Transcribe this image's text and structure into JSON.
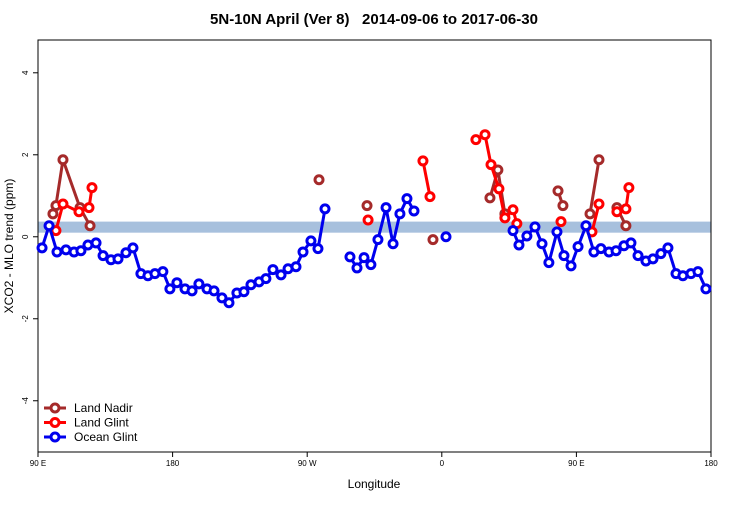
{
  "chart_data": {
    "type": "line",
    "title": "5N-10N April (Ver 8)   2014-09-06 to 2017-06-30",
    "x_label": "Longitude",
    "y_label": "XCO2 - MLO trend (ppm)",
    "xlim": [
      90,
      540
    ],
    "xticks": [
      {
        "value": 90,
        "label": "90 E"
      },
      180,
      {
        "value": 270,
        "label": "90 W"
      },
      {
        "value": 360,
        "label": "0"
      },
      {
        "value": 450,
        "label": "90 E"
      },
      {
        "value": 540,
        "label": "180"
      }
    ],
    "ylim": [
      -5.25,
      4.8
    ],
    "yticks": [
      -4,
      -2,
      0,
      2,
      4
    ],
    "band": {
      "y": [
        0.1,
        0.37
      ],
      "color": "#a7c0dd"
    },
    "legend": "bottom-left",
    "series": [
      {
        "name": "Land Nadir",
        "color": "#a52a2a",
        "x": [
          100.0,
          102.0,
          106.7,
          118.1,
          124.8,
          200,
          277.9,
          330,
          310.0,
          380,
          354.1,
          400,
          392.2,
          397.5,
          402.2,
          430,
          437.7,
          441.0,
          450,
          459.1,
          465.1,
          470,
          477.1,
          483.1
        ],
        "values": [
          0.56,
          0.76,
          1.88,
          0.71,
          0.27,
          null,
          1.39,
          null,
          0.76,
          null,
          -0.07,
          null,
          0.95,
          1.63,
          0.56,
          null,
          1.12,
          0.76,
          null,
          0.56,
          1.88,
          null,
          0.71,
          0.27
        ]
      },
      {
        "name": "Land Glint",
        "color": "#ff0000",
        "x": [
          102.0,
          106.7,
          117.4,
          124.1,
          126.1,
          200,
          310.7,
          340,
          347.4,
          352.1,
          370,
          382.8,
          388.9,
          392.9,
          398.2,
          402.2,
          407.6,
          410.2,
          420,
          439.7,
          450,
          460.4,
          465.1,
          470,
          477.1,
          483.1,
          485.1
        ],
        "values": [
          0.15,
          0.8,
          0.61,
          0.71,
          1.2,
          null,
          0.41,
          null,
          1.85,
          0.98,
          null,
          2.37,
          2.49,
          1.76,
          1.17,
          0.46,
          0.66,
          0.32,
          null,
          0.37,
          null,
          0.12,
          0.8,
          null,
          0.61,
          0.68,
          1.2
        ]
      },
      {
        "name": "Ocean Glint",
        "color": "#0000ee",
        "x": [
          92.7,
          97.4,
          102.7,
          108.7,
          114.1,
          118.7,
          123.4,
          128.8,
          133.5,
          138.8,
          143.5,
          148.8,
          153.5,
          158.8,
          163.5,
          168.2,
          173.5,
          178.2,
          182.9,
          188.3,
          193.0,
          197.6,
          203.0,
          207.7,
          213.0,
          217.7,
          223.0,
          227.7,
          232.4,
          237.8,
          242.4,
          247.1,
          252.5,
          257.2,
          262.5,
          267.2,
          272.5,
          277.2,
          281.9,
          290,
          298.6,
          303.3,
          308.0,
          312.6,
          317.3,
          322.7,
          327.4,
          332.0,
          336.7,
          341.4,
          350,
          362.8,
          380,
          407.6,
          411.6,
          416.9,
          422.3,
          427.0,
          431.6,
          437.0,
          441.7,
          446.4,
          451.1,
          456.4,
          461.7,
          466.4,
          471.8,
          476.5,
          481.8,
          486.5,
          491.2,
          496.5,
          501.2,
          506.5,
          511.2,
          516.6,
          521.2,
          526.6,
          531.3,
          536.6
        ],
        "values": [
          -0.27,
          0.27,
          -0.37,
          -0.32,
          -0.37,
          -0.34,
          -0.2,
          -0.15,
          -0.46,
          -0.56,
          -0.54,
          -0.39,
          -0.27,
          -0.9,
          -0.95,
          -0.9,
          -0.85,
          -1.27,
          -1.12,
          -1.27,
          -1.32,
          -1.15,
          -1.27,
          -1.32,
          -1.49,
          -1.61,
          -1.37,
          -1.34,
          -1.17,
          -1.1,
          -1.02,
          -0.8,
          -0.93,
          -0.78,
          -0.73,
          -0.37,
          -0.1,
          -0.29,
          0.68,
          null,
          -0.49,
          -0.76,
          -0.51,
          -0.68,
          -0.07,
          0.71,
          -0.17,
          0.56,
          0.93,
          0.63,
          null,
          0,
          null,
          0.15,
          -0.2,
          0.02,
          0.24,
          -0.17,
          -0.63,
          0.12,
          -0.46,
          -0.71,
          -0.24,
          0.27,
          -0.37,
          -0.29,
          -0.37,
          -0.34,
          -0.22,
          -0.15,
          -0.46,
          -0.59,
          -0.54,
          -0.41,
          -0.27,
          -0.9,
          -0.95,
          -0.9,
          -0.85,
          -1.27
        ]
      }
    ]
  }
}
